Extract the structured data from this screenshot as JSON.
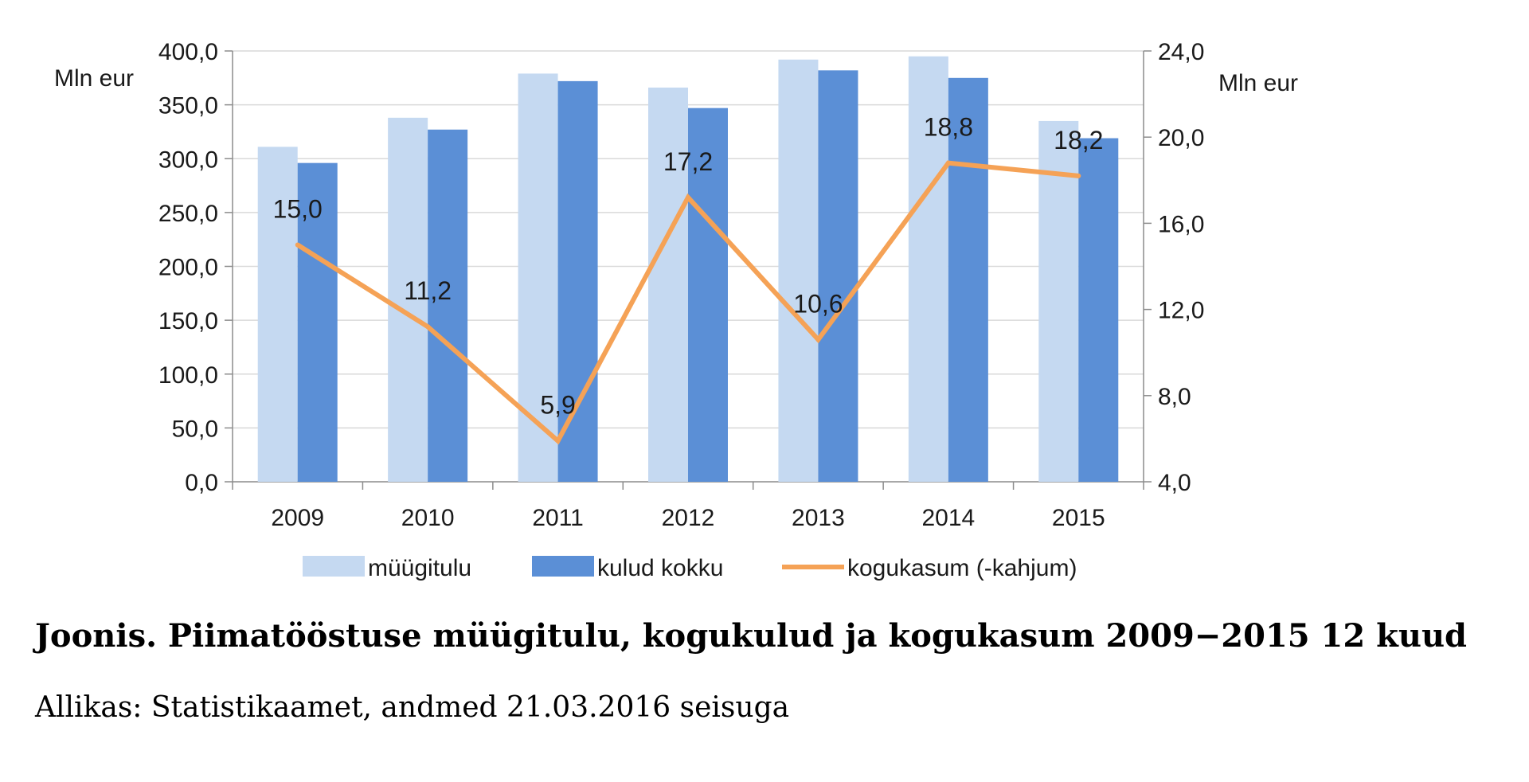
{
  "chart_data": {
    "type": "bar",
    "categories": [
      "2009",
      "2010",
      "2011",
      "2012",
      "2013",
      "2014",
      "2015"
    ],
    "series": [
      {
        "name": "müügitulu",
        "type": "bar",
        "axis": "left",
        "color": "#c5d9f1",
        "values": [
          311,
          338,
          379,
          366,
          392,
          395,
          335
        ]
      },
      {
        "name": "kulud kokku",
        "type": "bar",
        "axis": "left",
        "color": "#5b8fd6",
        "values": [
          296,
          327,
          372,
          347,
          382,
          375,
          319
        ]
      },
      {
        "name": "kogukasum (-kahjum)",
        "type": "line",
        "axis": "right",
        "color": "#f5a256",
        "values": [
          15.0,
          11.2,
          5.9,
          17.2,
          10.6,
          18.8,
          18.2
        ],
        "labels": [
          "15,0",
          "11,2",
          "5,9",
          "17,2",
          "10,6",
          "18,8",
          "18,2"
        ]
      }
    ],
    "left_axis": {
      "unit": "Mln eur",
      "ylim": [
        0,
        400
      ],
      "ticks": [
        "0,0",
        "50,0",
        "100,0",
        "150,0",
        "200,0",
        "250,0",
        "300,0",
        "350,0",
        "400,0"
      ]
    },
    "right_axis": {
      "unit": "Mln eur",
      "ylim": [
        4,
        24
      ],
      "ticks": [
        "4,0",
        "8,0",
        "12,0",
        "16,0",
        "20,0",
        "24,0"
      ]
    },
    "grid": true,
    "legend_position": "bottom"
  },
  "caption": "Joonis. Piimatööstuse müügitulu, kogukulud ja kogukasum 2009−2015 12 kuud",
  "source": "Allikas: Statistikaamet, andmed 21.03.2016 seisuga"
}
